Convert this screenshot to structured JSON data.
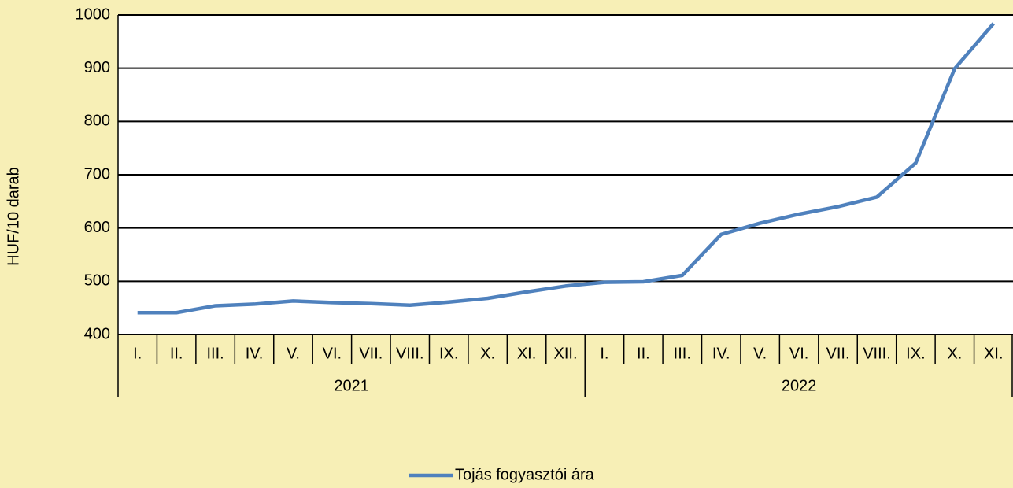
{
  "chart_data": {
    "type": "line",
    "y_label": "HUF/10 darab",
    "groups": [
      {
        "name": "2021",
        "categories": [
          "I.",
          "II.",
          "III.",
          "IV.",
          "V.",
          "VI.",
          "VII.",
          "VIII.",
          "IX.",
          "X.",
          "XI.",
          "XII."
        ]
      },
      {
        "name": "2022",
        "categories": [
          "I.",
          "II.",
          "III.",
          "IV.",
          "V.",
          "VI.",
          "VII.",
          "VIII.",
          "IX.",
          "X.",
          "XI."
        ]
      }
    ],
    "series": [
      {
        "name": "Tojás fogyasztói ára",
        "color": "#4f81bd",
        "values": [
          441,
          441,
          454,
          457,
          463,
          460,
          458,
          455,
          461,
          468,
          480,
          491,
          498,
          499,
          511,
          588,
          609,
          626,
          640,
          658,
          722,
          899,
          984
        ]
      }
    ],
    "ylim": [
      400,
      1000
    ],
    "yticks": [
      400,
      500,
      600,
      700,
      800,
      900,
      1000
    ],
    "grid": true,
    "legend": "bottom"
  }
}
